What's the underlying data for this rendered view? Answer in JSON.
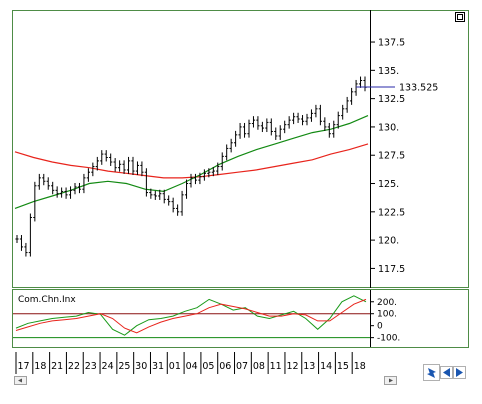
{
  "colors": {
    "frame": "#4e8c46",
    "price_bars": "#000000",
    "ma_red": "#e8241c",
    "ma_green": "#138a13",
    "cci_red": "#e8241c",
    "cci_green": "#1a9a1a",
    "level_red": "#8a1010",
    "level_green": "#138a13",
    "last_price_line": "#2a2aa8",
    "toolbar_icon": "#1a56b0"
  },
  "icons": {
    "corner": "small-square-icon",
    "refresh": "refresh-icon",
    "scroll_left": "triangle-left-icon",
    "scroll_right": "triangle-right-icon",
    "scroll_mini_left": "small-left-arrow-icon",
    "scroll_mini_right": "small-right-arrow-icon"
  },
  "last_price_label": "133.525",
  "chart_data": [
    {
      "type": "line",
      "title": "",
      "xlabel": "",
      "ylabel": "",
      "x_tick_labels": [
        "17",
        "18",
        "21",
        "22",
        "23",
        "24",
        "25",
        "30",
        "31",
        "01",
        "04",
        "05",
        "06",
        "07",
        "08",
        "11",
        "12",
        "13",
        "14",
        "15",
        "18"
      ],
      "y_ticks": [
        117.5,
        120,
        122.5,
        125,
        127.5,
        130,
        132.5,
        135,
        137.5
      ],
      "y_tick_labels": [
        "117.5",
        "120.",
        "122.5",
        "125.",
        "127.5",
        "130.",
        "132.5",
        "135.",
        "137.5"
      ],
      "ylim": [
        116.3,
        139.8
      ],
      "last_value": 133.525,
      "series": [
        {
          "kind": "ohlc_bars",
          "values": [
            120.1,
            119.4,
            118.9,
            122.0,
            124.8,
            125.5,
            125.2,
            124.8,
            124.4,
            124.1,
            124.3,
            124.0,
            124.4,
            124.7,
            124.5,
            125.5,
            126.0,
            126.5,
            127.0,
            127.6,
            127.3,
            126.9,
            126.4,
            126.7,
            126.2,
            127.0,
            126.1,
            126.6,
            126.0,
            124.2,
            124.0,
            123.9,
            124.1,
            123.6,
            123.4,
            122.8,
            122.5,
            124.0,
            125.0,
            125.5,
            125.3,
            125.6,
            125.9,
            126.0,
            126.1,
            126.5,
            127.4,
            128.1,
            128.6,
            129.3,
            130.0,
            129.4,
            130.3,
            130.6,
            130.1,
            129.9,
            130.4,
            129.6,
            129.2,
            129.8,
            130.2,
            130.6,
            130.9,
            130.7,
            130.5,
            130.8,
            131.2,
            131.6,
            130.5,
            130.0,
            129.4,
            130.2,
            131.0,
            131.6,
            132.3,
            133.1,
            133.8,
            134.1,
            133.5
          ]
        },
        {
          "kind": "moving_average",
          "color_key": "ma_red",
          "values": [
            127.8,
            127.3,
            126.9,
            126.6,
            126.4,
            126.1,
            125.9,
            125.7,
            125.5,
            125.5,
            125.6,
            125.8,
            126.0,
            126.2,
            126.5,
            126.8,
            127.1,
            127.6,
            128.0,
            128.5
          ]
        },
        {
          "kind": "moving_average",
          "color_key": "ma_green",
          "values": [
            122.8,
            123.4,
            123.9,
            124.4,
            125.0,
            125.2,
            125.0,
            124.5,
            124.3,
            125.0,
            125.8,
            126.7,
            127.4,
            128.0,
            128.5,
            129.0,
            129.5,
            129.8,
            130.3,
            131.0
          ]
        }
      ]
    },
    {
      "type": "line",
      "title": "Com.Chn.Inx",
      "y_ticks": [
        -100,
        0,
        100,
        200
      ],
      "y_tick_labels": [
        "-100.",
        "0",
        "100.",
        "200."
      ],
      "ylim": [
        -170,
        290
      ],
      "levels": [
        100,
        -100
      ],
      "series": [
        {
          "color_key": "cci_green",
          "values": [
            -20,
            20,
            40,
            60,
            70,
            80,
            110,
            95,
            -30,
            -80,
            0,
            50,
            60,
            80,
            120,
            150,
            220,
            180,
            130,
            150,
            80,
            60,
            90,
            120,
            60,
            -30,
            60,
            200,
            250,
            200
          ]
        },
        {
          "color_key": "cci_red",
          "values": [
            -40,
            -10,
            20,
            40,
            50,
            60,
            80,
            100,
            60,
            -20,
            -60,
            -10,
            30,
            60,
            80,
            100,
            150,
            180,
            160,
            140,
            110,
            80,
            80,
            100,
            90,
            40,
            40,
            110,
            180,
            220
          ]
        }
      ]
    }
  ]
}
